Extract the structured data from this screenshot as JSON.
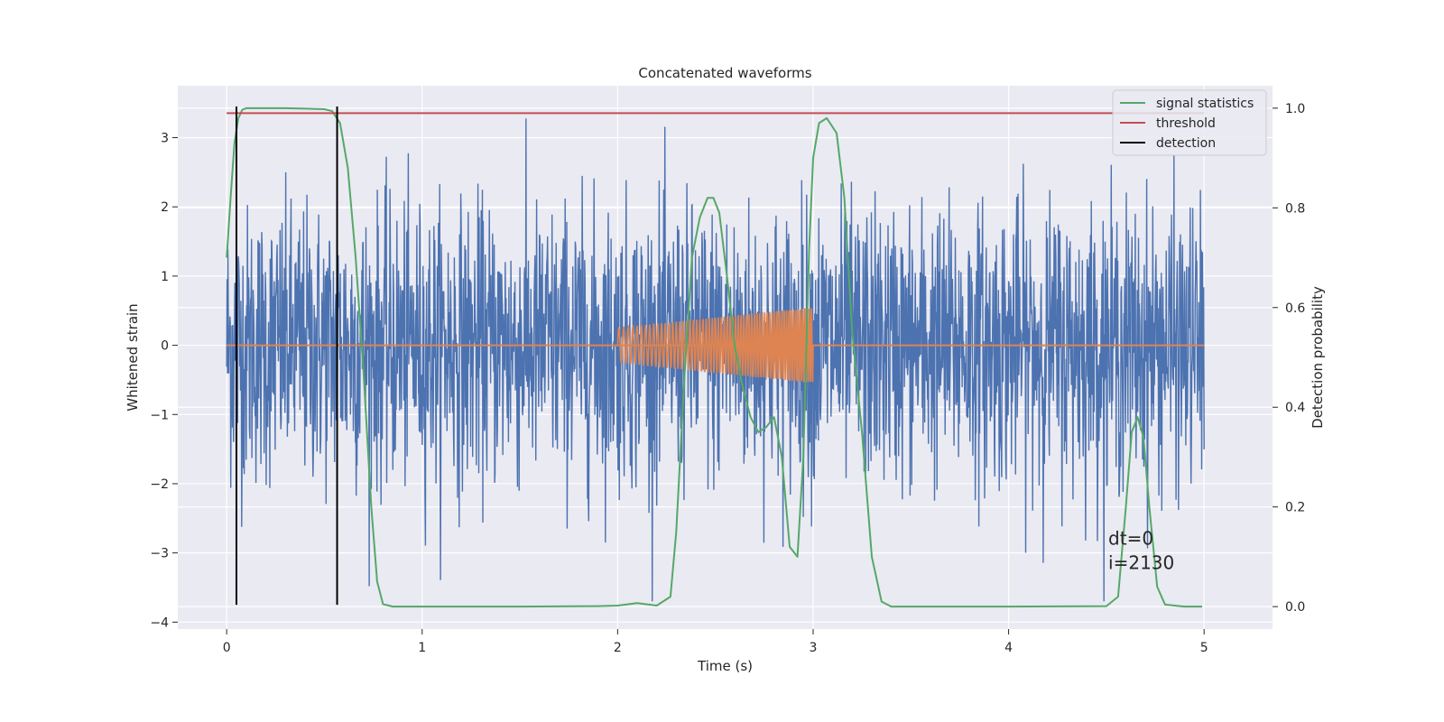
{
  "chart_data": {
    "type": "line",
    "title": "Concatenated waveforms",
    "xlabel": "Time (s)",
    "ylabel": "Whitened strain",
    "y2label": "Detection probability",
    "xlim": [
      -0.25,
      5.35
    ],
    "ylim": [
      -4.1,
      3.75
    ],
    "y2lim": [
      -0.045,
      1.045
    ],
    "x_ticks": [
      0,
      1,
      2,
      3,
      4,
      5
    ],
    "y_ticks": [
      -4,
      -3,
      -2,
      -1,
      0,
      1,
      2,
      3
    ],
    "y2_ticks": [
      0.0,
      0.2,
      0.4,
      0.6,
      0.8,
      1.0
    ],
    "x_tick_labels": [
      "0",
      "1",
      "2",
      "3",
      "4",
      "5"
    ],
    "y_tick_labels": [
      "−4",
      "−3",
      "−2",
      "−1",
      "0",
      "1",
      "2",
      "3"
    ],
    "y2_tick_labels": [
      "0.0",
      "0.2",
      "0.4",
      "0.6",
      "0.8",
      "1.0"
    ],
    "grid": true,
    "legend_position": "top-right",
    "colors": {
      "strain": "#4c72b0",
      "injection": "#dd8452",
      "signal_statistics": "#55a868",
      "threshold": "#c44e52",
      "detection": "#000000",
      "background": "#eaeaf2",
      "grid": "#ffffff"
    },
    "strain_noise": {
      "x_range": [
        0,
        5
      ],
      "envelope": [
        -3.7,
        3.45
      ],
      "note_style": "dense whitened noise"
    },
    "injection": {
      "x_start": 2.0,
      "x_end": 3.0,
      "amplitude_start": 0.25,
      "amplitude_end": 0.55,
      "baseline": 0
    },
    "series": [
      {
        "name": "signal statistics",
        "axis": "right",
        "x": [
          0,
          0.02,
          0.04,
          0.06,
          0.08,
          0.1,
          0.2,
          0.3,
          0.4,
          0.5,
          0.54,
          0.58,
          0.62,
          0.66,
          0.7,
          0.74,
          0.77,
          0.8,
          0.85,
          1.0,
          1.5,
          1.9,
          2.0,
          2.1,
          2.2,
          2.27,
          2.3,
          2.34,
          2.38,
          2.42,
          2.46,
          2.49,
          2.52,
          2.56,
          2.6,
          2.64,
          2.68,
          2.72,
          2.76,
          2.8,
          2.84,
          2.88,
          2.92,
          2.95,
          2.98,
          3.0,
          3.03,
          3.07,
          3.12,
          3.16,
          3.2,
          3.25,
          3.3,
          3.35,
          3.4,
          3.5,
          4.0,
          4.5,
          4.56,
          4.6,
          4.63,
          4.66,
          4.69,
          4.72,
          4.76,
          4.8,
          4.9,
          4.99
        ],
        "values": [
          0.7,
          0.82,
          0.93,
          0.98,
          0.997,
          1.0,
          1.0,
          1.0,
          0.999,
          0.998,
          0.994,
          0.97,
          0.88,
          0.7,
          0.47,
          0.2,
          0.05,
          0.005,
          0.0,
          0.0,
          0.0,
          0.001,
          0.002,
          0.007,
          0.002,
          0.02,
          0.15,
          0.45,
          0.7,
          0.78,
          0.82,
          0.82,
          0.79,
          0.66,
          0.52,
          0.44,
          0.38,
          0.35,
          0.36,
          0.38,
          0.3,
          0.12,
          0.1,
          0.3,
          0.72,
          0.9,
          0.97,
          0.98,
          0.95,
          0.82,
          0.55,
          0.35,
          0.1,
          0.01,
          0.0,
          0.0,
          0.0,
          0.001,
          0.02,
          0.2,
          0.35,
          0.38,
          0.34,
          0.2,
          0.04,
          0.004,
          0.0,
          0.0
        ]
      },
      {
        "name": "threshold",
        "axis": "right",
        "x": [
          0,
          5
        ],
        "values": [
          0.99,
          0.99
        ]
      },
      {
        "name": "detection",
        "axis": "left",
        "x": [
          0.05,
          0.565
        ],
        "y_range": [
          -3.75,
          3.45
        ]
      }
    ],
    "annotations": [
      {
        "text": "dt=0",
        "x": 4.51,
        "y": -2.88
      },
      {
        "text": "i=2130",
        "x": 4.51,
        "y": -3.23
      }
    ]
  }
}
